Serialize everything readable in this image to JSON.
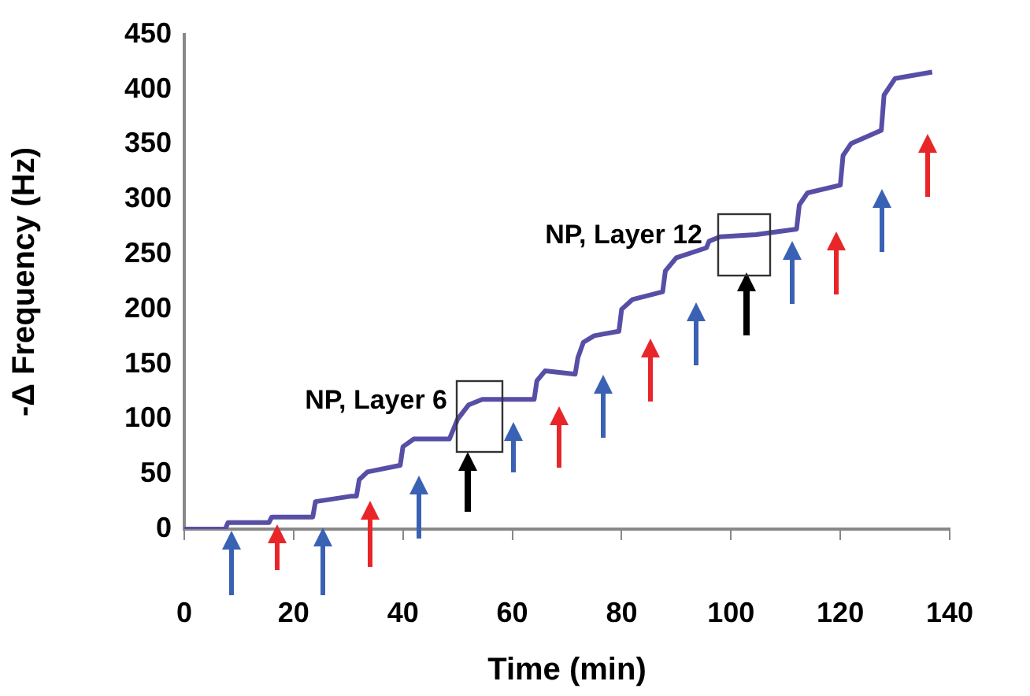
{
  "chart_data": {
    "type": "line",
    "xlabel": "Time (min)",
    "ylabel": "-Δ Frequency (Hz)",
    "xlim": [
      0,
      140
    ],
    "xticks": [
      0,
      20,
      40,
      60,
      80,
      100,
      120,
      140
    ],
    "ylim": [
      0,
      450
    ],
    "yticks": [
      0,
      50,
      100,
      150,
      200,
      250,
      300,
      350,
      400,
      450
    ],
    "grid": false,
    "legend": false,
    "marker": "none",
    "line_style": "solid",
    "annotations": [
      "NP, Layer 6",
      "NP, Layer 12"
    ],
    "series": [
      {
        "color": "#574fa6",
        "x": [
          0,
          7.5,
          8,
          15.5,
          16,
          23.5,
          24,
          30.6,
          31.5,
          32,
          33.5,
          39.5,
          40,
          42,
          48.5,
          50,
          52,
          54.5,
          64,
          64.5,
          66,
          71.5,
          72,
          73,
          75,
          79.5,
          80,
          82,
          87.5,
          88,
          90,
          95.5,
          96,
          98,
          104.6,
          112,
          112.5,
          114,
          120,
          120.5,
          122,
          127.5,
          128,
          130,
          136.8
        ],
        "values": [
          0,
          0,
          6,
          6,
          11,
          11,
          25,
          30,
          30,
          45,
          52,
          58,
          75,
          82,
          82,
          100,
          113,
          118,
          118,
          135,
          144,
          141,
          156,
          170,
          176,
          180,
          200,
          209,
          216,
          235,
          247,
          256,
          262,
          266,
          268,
          273,
          295,
          306,
          313,
          340,
          351,
          363,
          395,
          410,
          416
        ]
      }
    ]
  }
}
